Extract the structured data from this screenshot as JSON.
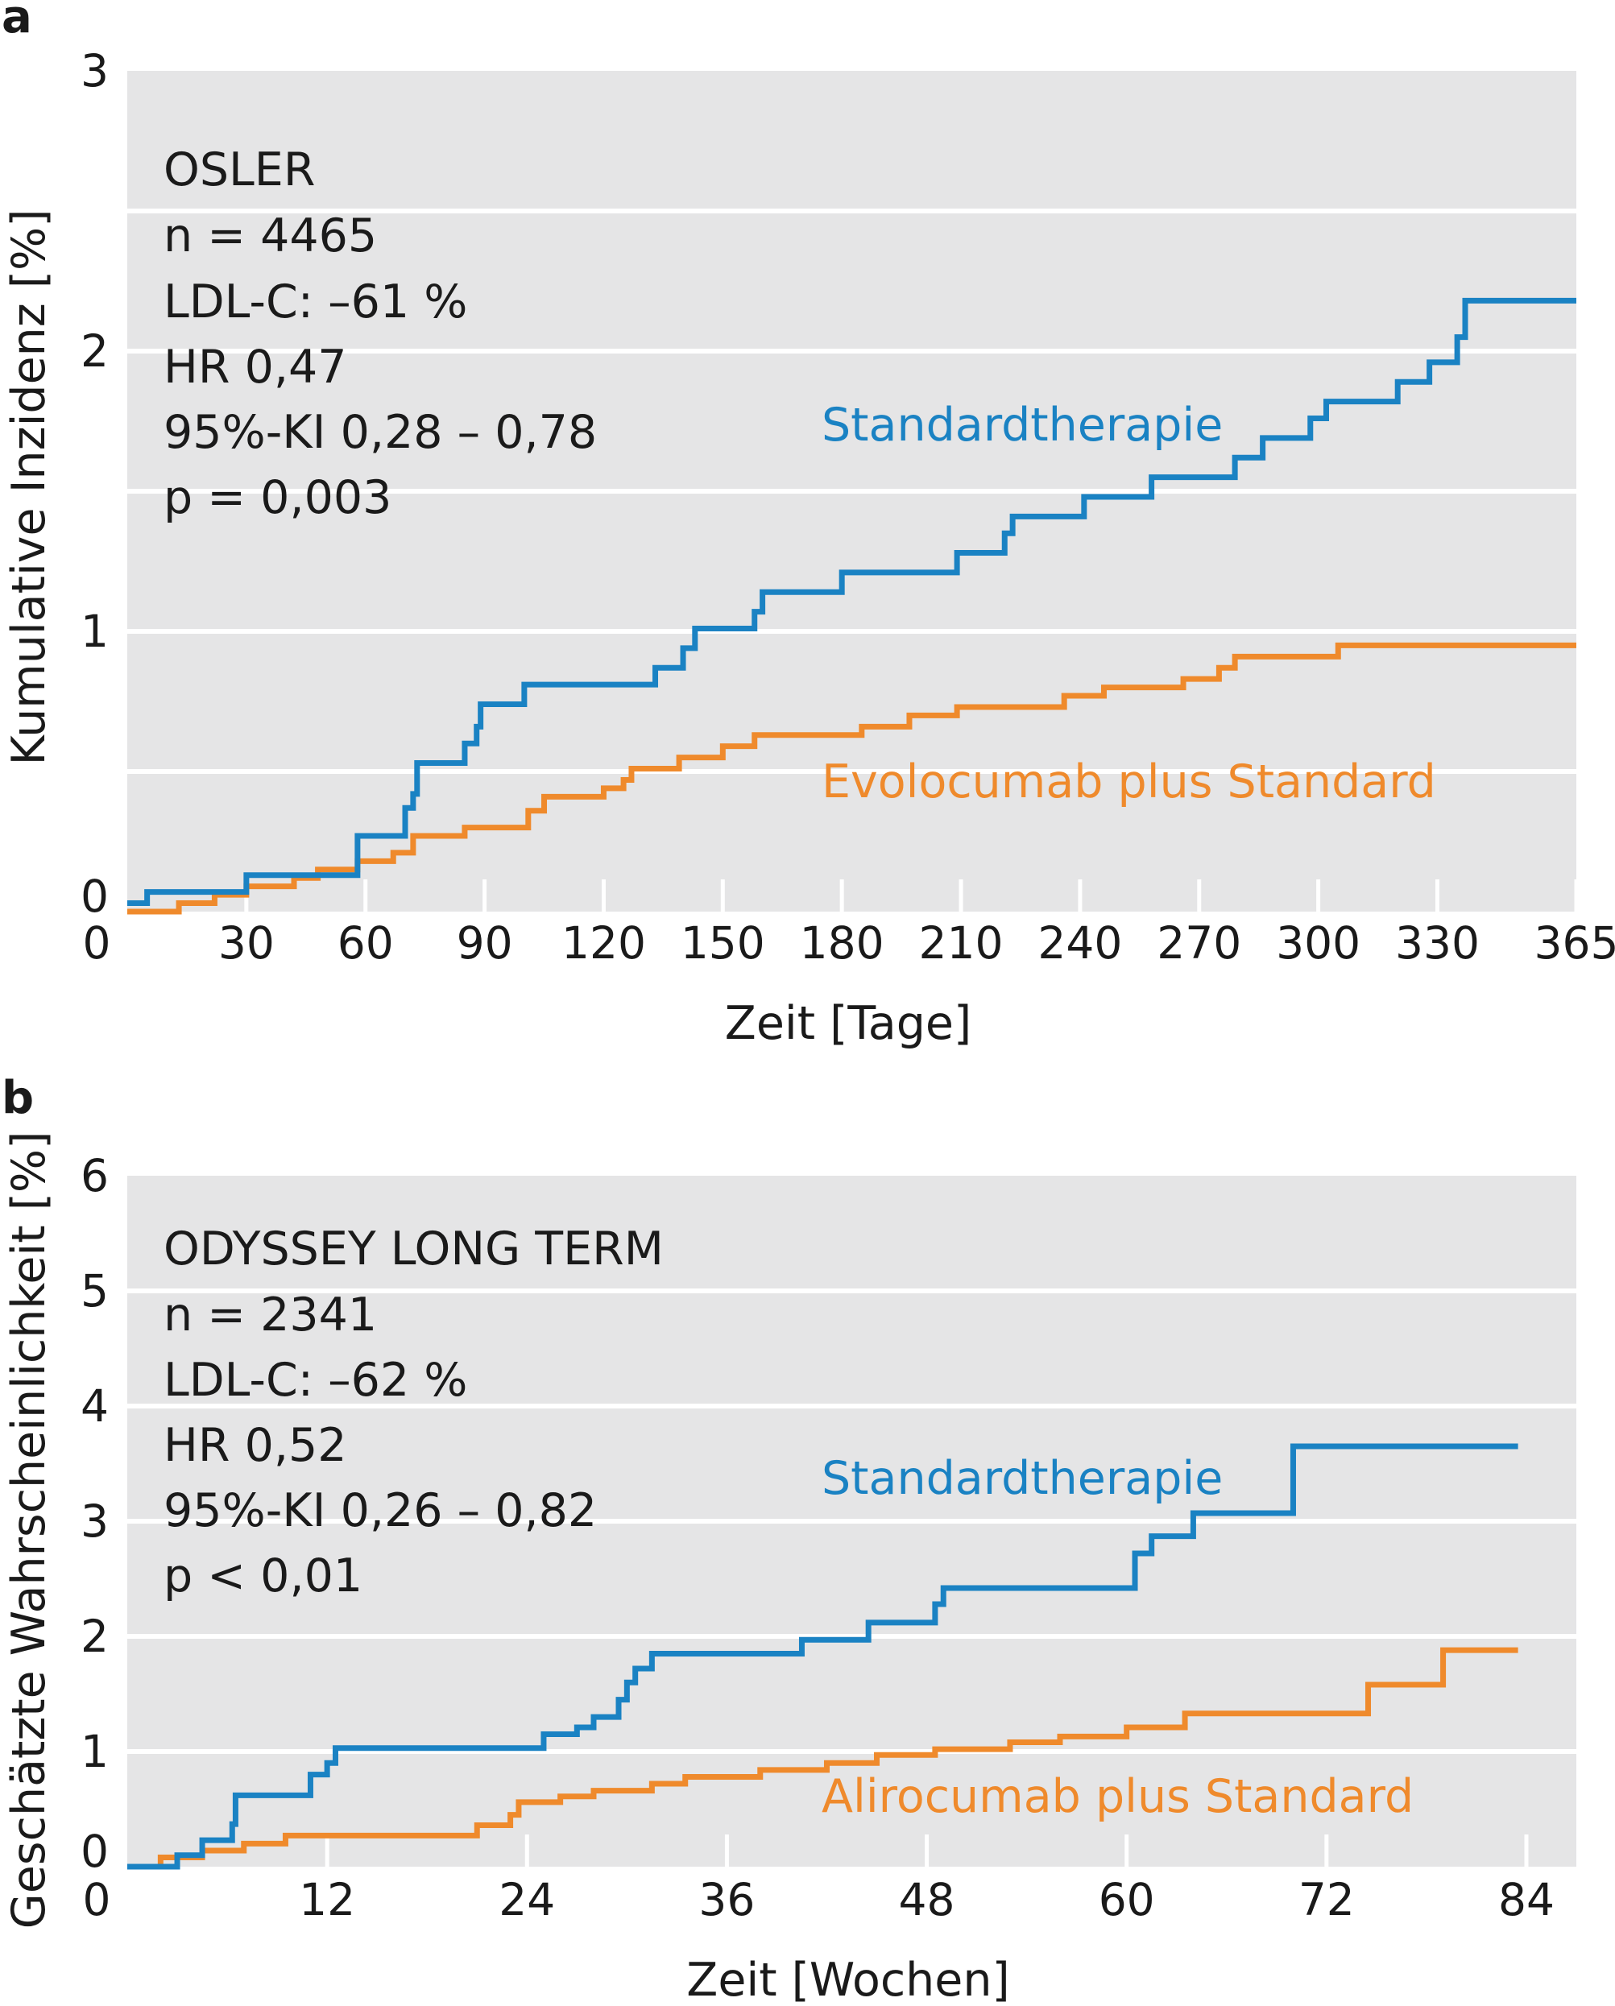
{
  "colors": {
    "panel_bg": "#e5e5e6",
    "grid": "#ffffff",
    "standard": "#1a82c3",
    "pcsk9": "#ef8a2c"
  },
  "panels": [
    {
      "letter": "a",
      "info": [
        "OSLER",
        "n = 4465",
        "LDL-C: –61 %",
        "HR 0,47",
        "95%-KI 0,28 – 0,78",
        "p = 0,003"
      ],
      "series_labels": [
        "Standardtherapie",
        "Evolocumab plus Standard"
      ]
    },
    {
      "letter": "b",
      "info": [
        "ODYSSEY LONG TERM",
        "n = 2341",
        "LDL-C: –62 %",
        "HR 0,52",
        "95%-KI 0,26 – 0,82",
        "p < 0,01"
      ],
      "series_labels": [
        "Standardtherapie",
        "Alirocumab plus Standard"
      ]
    }
  ],
  "chart_data": [
    {
      "type": "line",
      "step": true,
      "xlabel": "Zeit [Tage]",
      "ylabel": "Kumulative Inzidenz [%]",
      "xlim": [
        0,
        365
      ],
      "ylim": [
        0,
        3
      ],
      "xticks": [
        0,
        30,
        60,
        90,
        120,
        150,
        180,
        210,
        240,
        270,
        300,
        330,
        365
      ],
      "xtick_labels": [
        "0",
        "30",
        "60",
        "90",
        "120",
        "150",
        "180",
        "210",
        "240",
        "270",
        "300",
        "330",
        "365"
      ],
      "yticks": [
        0,
        1,
        2,
        3
      ],
      "ytick_labels": [
        "0",
        "1",
        "2",
        "3"
      ],
      "grid_y": [
        0.5,
        1,
        1.5,
        2,
        2.5
      ],
      "grid": true,
      "series": [
        {
          "name": "Standardtherapie",
          "color": "#1a82c3",
          "x": [
            0,
            5,
            30,
            58,
            70,
            72,
            73,
            85,
            88,
            89,
            100,
            133,
            140,
            143,
            158,
            160,
            180,
            209,
            221,
            223,
            241,
            258,
            279,
            286,
            298,
            302,
            320,
            328,
            335,
            337,
            365
          ],
          "y": [
            0.03,
            0.07,
            0.13,
            0.27,
            0.37,
            0.42,
            0.53,
            0.6,
            0.66,
            0.74,
            0.81,
            0.87,
            0.94,
            1.01,
            1.07,
            1.14,
            1.21,
            1.28,
            1.35,
            1.41,
            1.48,
            1.55,
            1.62,
            1.69,
            1.76,
            1.82,
            1.89,
            1.96,
            2.05,
            2.18,
            2.18
          ]
        },
        {
          "name": "Evolocumab plus Standard",
          "color": "#ef8a2c",
          "x": [
            0,
            13,
            22,
            30,
            42,
            48,
            58,
            67,
            72,
            85,
            101,
            105,
            120,
            125,
            127,
            139,
            150,
            158,
            185,
            197,
            209,
            236,
            246,
            266,
            275,
            279,
            305,
            365
          ],
          "y": [
            0.0,
            0.03,
            0.06,
            0.09,
            0.12,
            0.15,
            0.18,
            0.21,
            0.27,
            0.3,
            0.36,
            0.41,
            0.44,
            0.47,
            0.51,
            0.55,
            0.59,
            0.63,
            0.66,
            0.7,
            0.73,
            0.77,
            0.8,
            0.83,
            0.87,
            0.91,
            0.95,
            0.95
          ]
        }
      ]
    },
    {
      "type": "line",
      "step": true,
      "xlabel": "Zeit [Wochen]",
      "ylabel": "Geschätzte Wahrscheinlichkeit [%]",
      "xlim": [
        0,
        87
      ],
      "ylim": [
        0,
        6
      ],
      "xticks": [
        0,
        12,
        24,
        36,
        48,
        60,
        72,
        84
      ],
      "xtick_labels": [
        "0",
        "12",
        "24",
        "36",
        "48",
        "60",
        "72",
        "84"
      ],
      "yticks": [
        0,
        1,
        2,
        3,
        4,
        5,
        6
      ],
      "ytick_labels": [
        "0",
        "1",
        "2",
        "3",
        "4",
        "5",
        "6"
      ],
      "grid_y": [
        1,
        2,
        3,
        4,
        5
      ],
      "grid": true,
      "series": [
        {
          "name": "Standardtherapie",
          "color": "#1a82c3",
          "x": [
            0,
            3,
            4.5,
            6.3,
            6.5,
            11,
            12,
            12.5,
            25,
            27,
            28,
            29.5,
            30,
            30.5,
            31.5,
            40.5,
            44.5,
            48.5,
            49,
            60.5,
            61.5,
            64,
            70,
            83.5
          ],
          "y": [
            0.0,
            0.1,
            0.23,
            0.37,
            0.62,
            0.8,
            0.9,
            1.03,
            1.15,
            1.21,
            1.3,
            1.45,
            1.6,
            1.72,
            1.85,
            1.97,
            2.12,
            2.28,
            2.42,
            2.72,
            2.87,
            3.07,
            3.65,
            3.65
          ]
        },
        {
          "name": "Alirocumab plus Standard",
          "color": "#ef8a2c",
          "x": [
            0,
            2,
            4.5,
            7,
            9.5,
            21,
            23,
            23.5,
            26,
            28,
            31.5,
            33.5,
            38,
            42,
            45,
            48.5,
            53,
            56,
            60,
            63.5,
            74.5,
            79,
            83.5
          ],
          "y": [
            0.0,
            0.08,
            0.14,
            0.2,
            0.27,
            0.36,
            0.45,
            0.56,
            0.61,
            0.66,
            0.72,
            0.78,
            0.84,
            0.9,
            0.97,
            1.02,
            1.08,
            1.13,
            1.21,
            1.33,
            1.58,
            1.88,
            1.88
          ]
        }
      ]
    }
  ]
}
